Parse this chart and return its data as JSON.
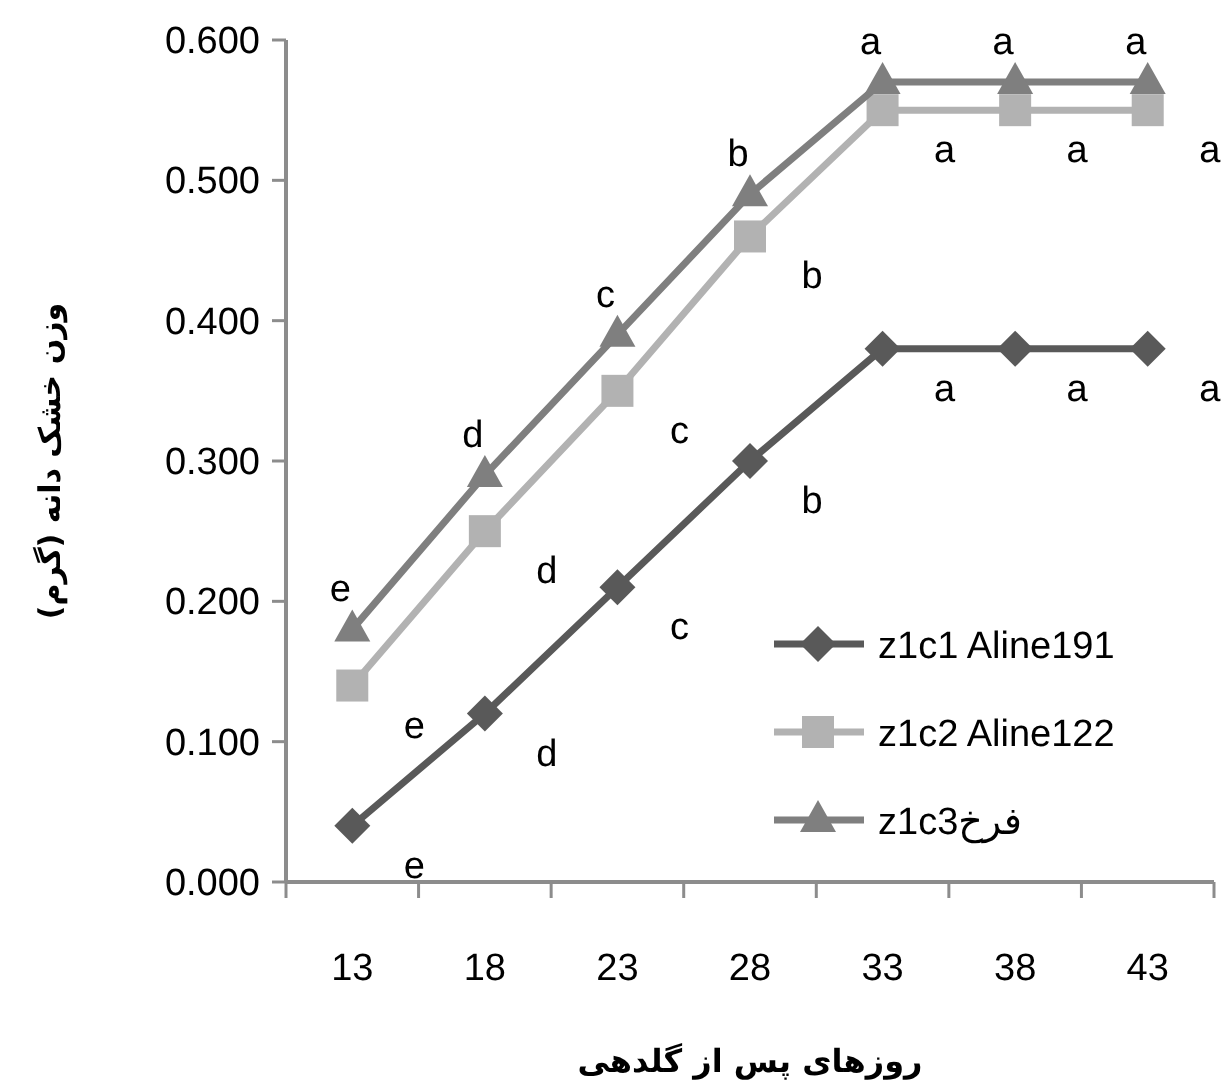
{
  "chart_data": {
    "type": "line",
    "xlabel": "روزهای پس از گلدهی",
    "ylabel": "وزن خشک دانه (گرم)",
    "categories": [
      "13",
      "18",
      "23",
      "28",
      "33",
      "38",
      "43"
    ],
    "ylim": [
      0,
      0.6
    ],
    "yticks": [
      {
        "value": 0,
        "label": "0.000"
      },
      {
        "value": 0.1,
        "label": "0.100"
      },
      {
        "value": 0.2,
        "label": "0.200"
      },
      {
        "value": 0.3,
        "label": "0.300"
      },
      {
        "value": 0.4,
        "label": "0.400"
      },
      {
        "value": 0.5,
        "label": "0.500"
      },
      {
        "value": 0.6,
        "label": "0.600"
      }
    ],
    "grid": false,
    "legend": "bottom right",
    "line_style": "solid",
    "series": [
      {
        "name": "z1c1 Aline191",
        "color": "#595959",
        "marker": "diamond",
        "values": [
          0.04,
          0.12,
          0.21,
          0.3,
          0.38,
          0.38,
          0.38
        ]
      },
      {
        "name": "z1c2 Aline122",
        "color": "#b2b2b2",
        "marker": "square",
        "values": [
          0.14,
          0.25,
          0.35,
          0.46,
          0.55,
          0.55,
          0.55
        ]
      },
      {
        "name": "z1c3فرخ",
        "color": "#7f7f7f",
        "marker": "triangle",
        "values": [
          0.18,
          0.29,
          0.39,
          0.49,
          0.57,
          0.57,
          0.57
        ]
      }
    ],
    "annotations": [
      {
        "text": "e",
        "x": "13",
        "y": 0.18
      },
      {
        "text": "d",
        "x": "18",
        "y": 0.29
      },
      {
        "text": "c",
        "x": "23",
        "y": 0.39
      },
      {
        "text": "b",
        "x": "28",
        "y": 0.49
      },
      {
        "text": "a",
        "x": "33",
        "y": 0.57
      },
      {
        "text": "a",
        "x": "38",
        "y": 0.57
      },
      {
        "text": "a",
        "x": "43",
        "y": 0.57
      },
      {
        "text": "e",
        "x": "13",
        "y": 0.14
      },
      {
        "text": "d",
        "x": "18",
        "y": 0.25
      },
      {
        "text": "c",
        "x": "23",
        "y": 0.35
      },
      {
        "text": "b",
        "x": "28",
        "y": 0.46
      },
      {
        "text": "a",
        "x": "33",
        "y": 0.55
      },
      {
        "text": "a",
        "x": "38",
        "y": 0.55
      },
      {
        "text": "a",
        "x": "43",
        "y": 0.55
      },
      {
        "text": "e",
        "x": "13",
        "y": 0.04
      },
      {
        "text": "d",
        "x": "18",
        "y": 0.12
      },
      {
        "text": "c",
        "x": "23",
        "y": 0.21
      },
      {
        "text": "b",
        "x": "28",
        "y": 0.3
      },
      {
        "text": "a",
        "x": "33",
        "y": 0.38
      },
      {
        "text": "a",
        "x": "38",
        "y": 0.38
      },
      {
        "text": "a",
        "x": "43",
        "y": 0.38
      }
    ]
  }
}
